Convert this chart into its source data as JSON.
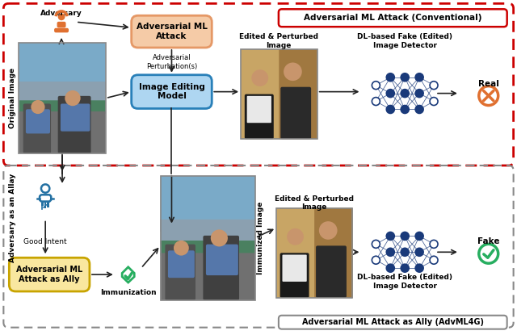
{
  "title_top": "Adversarial ML Attack (Conventional)",
  "title_bottom": "Adversarial ML Attack as Ally (AdvML4G)",
  "box_adv_attack": "Adversarial ML\nAttack",
  "box_img_edit": "Image Editing\nModel",
  "box_adv_ally": "Adversarial ML\nAttack as Ally",
  "label_adversary": "Adversary",
  "label_orig_image": "Original Image",
  "label_adv_pert": "Adversarial\nPerturbation(s)",
  "label_edited_pert_top": "Edited & Perturbed\nImage",
  "label_dl_detector_top": "DL-based Fake (Edited)\nImage Detector",
  "label_real": "Real",
  "label_adversary_ally": "Adversary as an Allay",
  "label_good_intent": "Good Intent",
  "label_immunized": "Immunized Image",
  "label_immunization": "Immunization",
  "label_edited_pert_bot": "Edited & Perturbed\nImage",
  "label_dl_detector_bot": "DL-based Fake (Edited)\nImage Detector",
  "label_fake": "Fake",
  "color_top_box_outline": "#cc0000",
  "color_bot_box_outline": "#888888",
  "color_adv_attack_fill": "#f5cba7",
  "color_adv_attack_edge": "#e59866",
  "color_img_edit_fill": "#aed6f1",
  "color_img_edit_edge": "#2980b9",
  "color_adv_ally_fill": "#f9e79f",
  "color_adv_ally_edge": "#c8a400",
  "color_real_circle": "#e07030",
  "color_fake_circle": "#27ae60",
  "color_nn_blue": "#1a3a7a",
  "color_adversary_icon": "#e07030",
  "color_ally_icon": "#2471a3"
}
